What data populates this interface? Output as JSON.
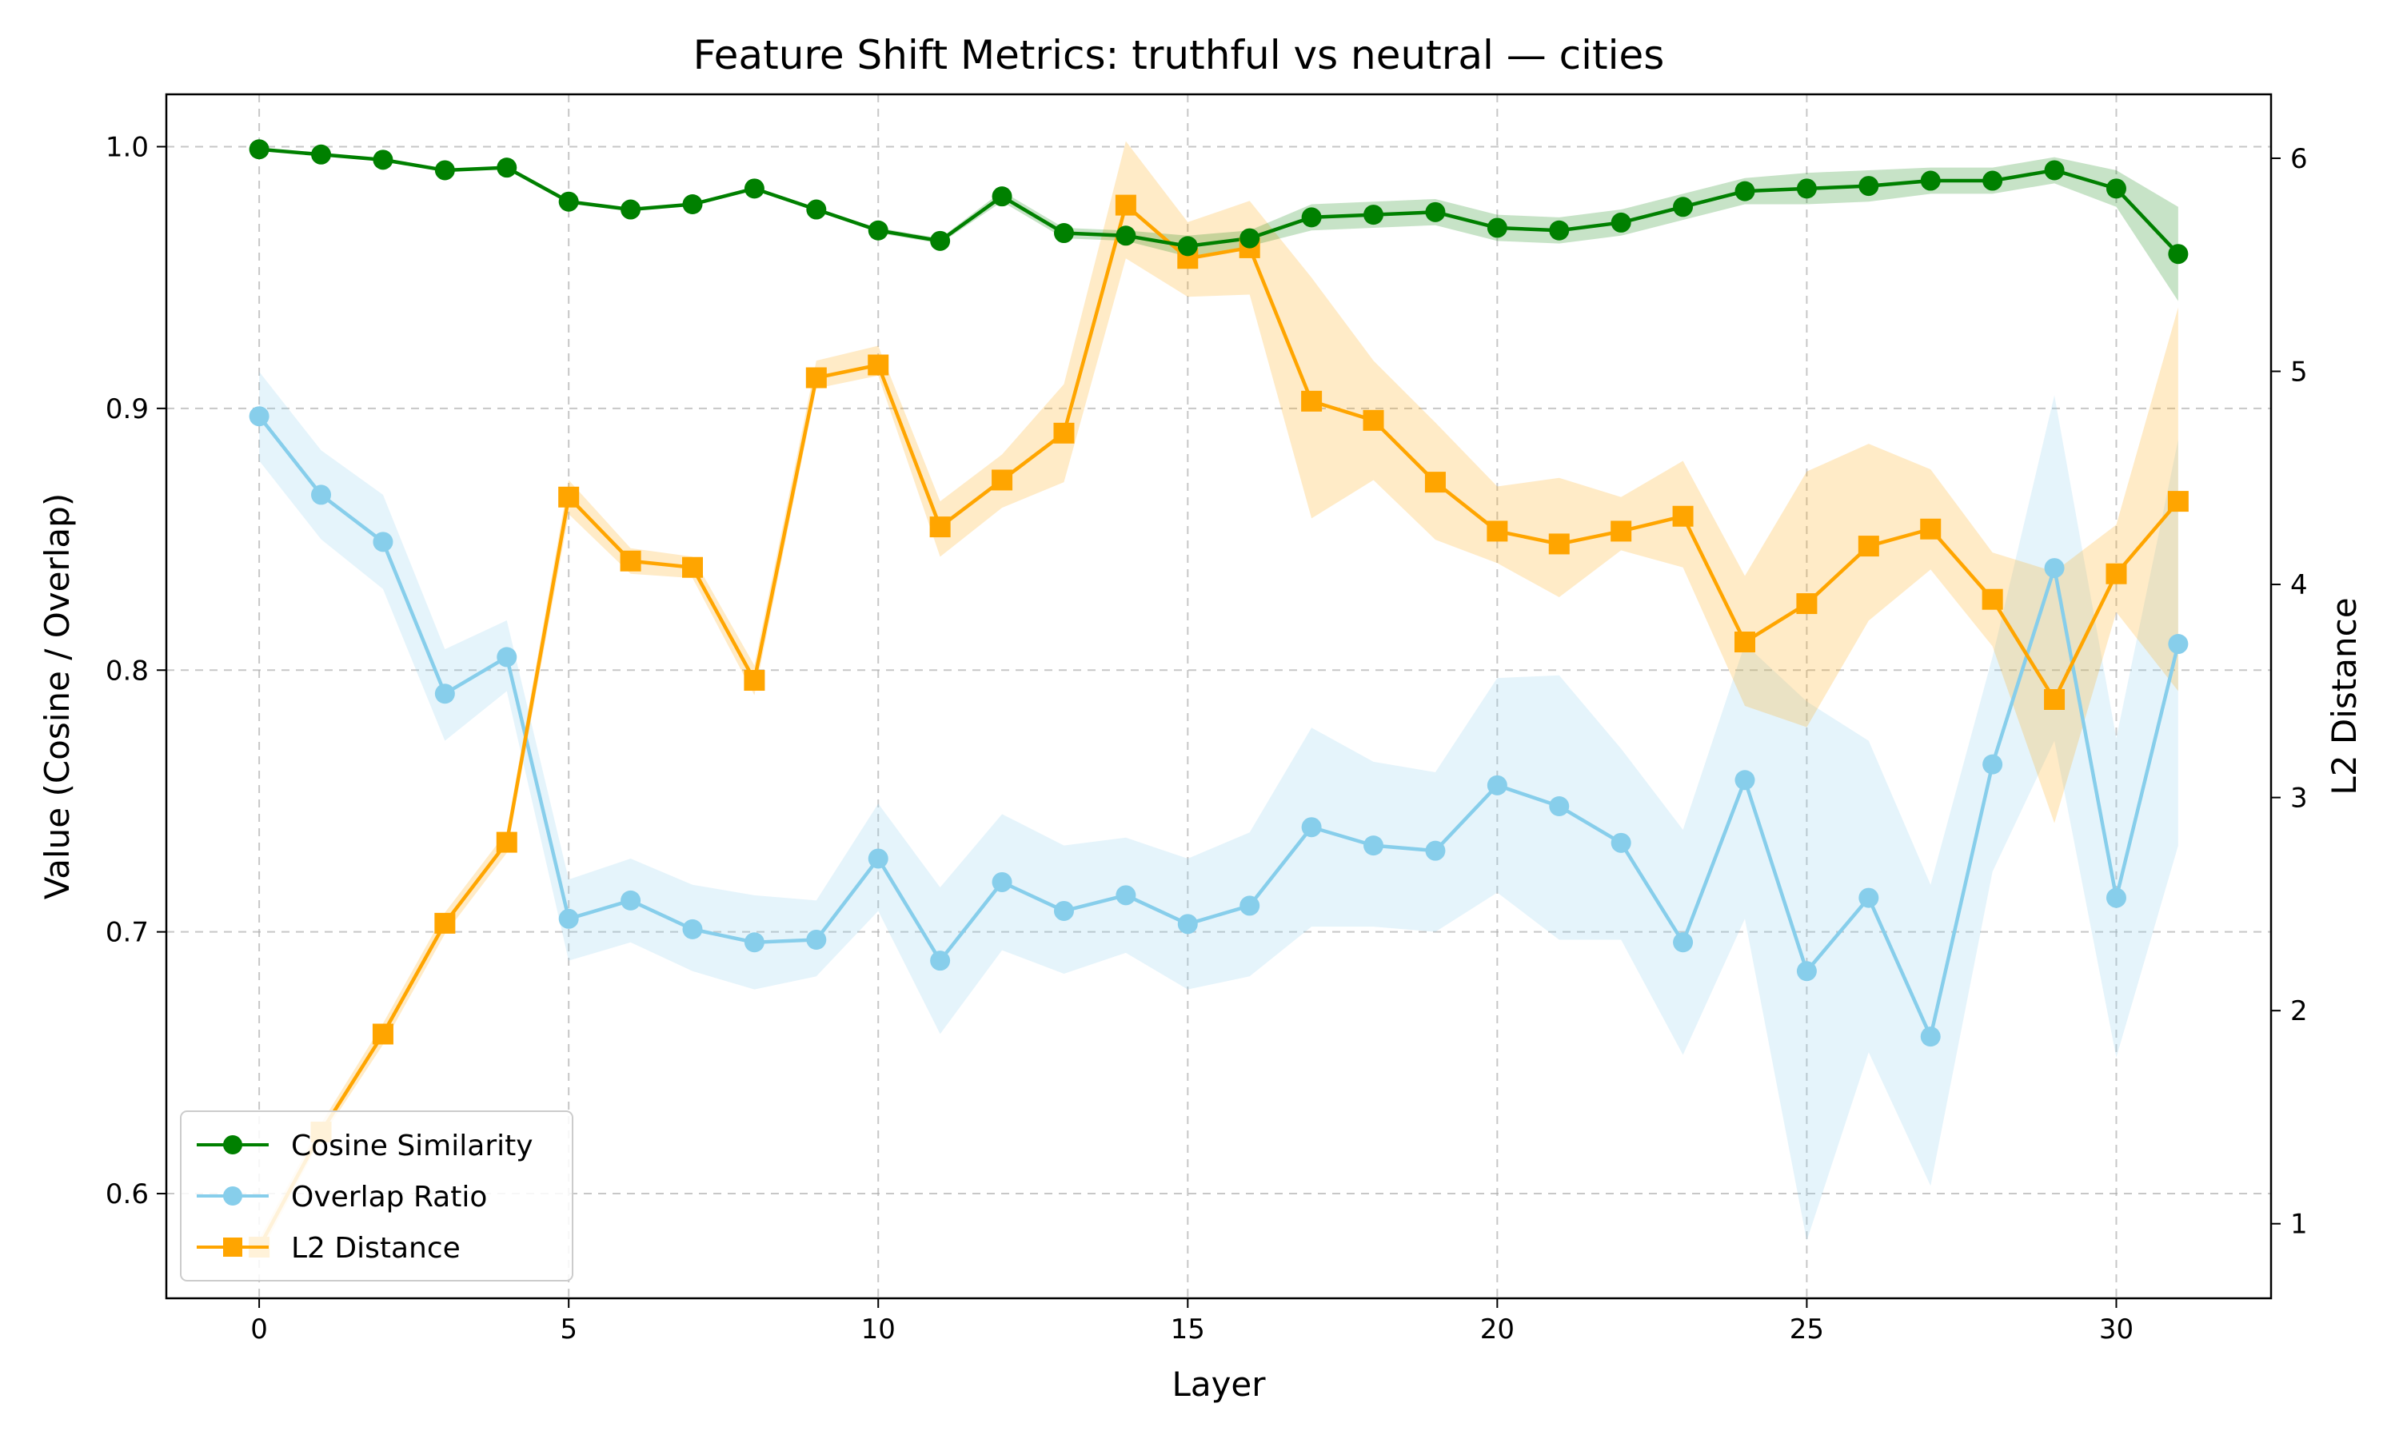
{
  "chart_data": {
    "type": "line",
    "title": "Feature Shift Metrics: truthful vs neutral — cities",
    "xlabel": "Layer",
    "ylabel_left": "Value (Cosine / Overlap)",
    "ylabel_right": "L2 Distance",
    "xlim": [
      -1.5,
      32.5
    ],
    "ylim_left": [
      0.56,
      1.02
    ],
    "ylim_right": [
      0.65,
      6.3
    ],
    "x_ticks": [
      0,
      5,
      10,
      15,
      20,
      25,
      30
    ],
    "y_ticks_left": [
      0.6,
      0.7,
      0.8,
      0.9,
      1.0
    ],
    "y_ticks_right": [
      1,
      2,
      3,
      4,
      5,
      6
    ],
    "grid": true,
    "legend_position": "lower-left",
    "x": [
      0,
      1,
      2,
      3,
      4,
      5,
      6,
      7,
      8,
      9,
      10,
      11,
      12,
      13,
      14,
      15,
      16,
      17,
      18,
      19,
      20,
      21,
      22,
      23,
      24,
      25,
      26,
      27,
      28,
      29,
      30,
      31
    ],
    "series": [
      {
        "name": "Cosine Similarity",
        "axis": "left",
        "color": "#008000",
        "marker": "circle",
        "values": [
          0.999,
          0.997,
          0.995,
          0.991,
          0.992,
          0.979,
          0.976,
          0.978,
          0.984,
          0.976,
          0.968,
          0.964,
          0.981,
          0.967,
          0.966,
          0.962,
          0.965,
          0.973,
          0.974,
          0.975,
          0.969,
          0.968,
          0.971,
          0.977,
          0.983,
          0.984,
          0.985,
          0.987,
          0.987,
          0.991,
          0.984,
          0.959
        ],
        "band_lower": [
          0.999,
          0.997,
          0.995,
          0.991,
          0.992,
          0.979,
          0.976,
          0.978,
          0.984,
          0.976,
          0.967,
          0.963,
          0.979,
          0.965,
          0.964,
          0.958,
          0.962,
          0.968,
          0.969,
          0.97,
          0.964,
          0.963,
          0.966,
          0.972,
          0.978,
          0.978,
          0.979,
          0.982,
          0.982,
          0.986,
          0.977,
          0.941
        ],
        "band_upper": [
          0.999,
          0.997,
          0.995,
          0.991,
          0.992,
          0.979,
          0.976,
          0.978,
          0.984,
          0.976,
          0.969,
          0.965,
          0.983,
          0.969,
          0.968,
          0.966,
          0.968,
          0.978,
          0.979,
          0.98,
          0.974,
          0.973,
          0.976,
          0.982,
          0.988,
          0.99,
          0.991,
          0.992,
          0.992,
          0.996,
          0.991,
          0.977
        ]
      },
      {
        "name": "Overlap Ratio",
        "axis": "left",
        "color": "#87CEEB",
        "marker": "circle",
        "values": [
          0.897,
          0.867,
          0.849,
          0.791,
          0.805,
          0.705,
          0.712,
          0.701,
          0.696,
          0.697,
          0.728,
          0.689,
          0.719,
          0.708,
          0.714,
          0.703,
          0.71,
          0.74,
          0.733,
          0.731,
          0.756,
          0.748,
          0.734,
          0.696,
          0.758,
          0.685,
          0.713,
          0.66,
          0.764,
          0.839,
          0.713,
          0.81
        ],
        "band_lower": [
          0.88,
          0.85,
          0.831,
          0.773,
          0.792,
          0.689,
          0.696,
          0.685,
          0.678,
          0.683,
          0.708,
          0.661,
          0.693,
          0.684,
          0.692,
          0.678,
          0.683,
          0.702,
          0.702,
          0.7,
          0.715,
          0.697,
          0.697,
          0.653,
          0.705,
          0.582,
          0.654,
          0.603,
          0.723,
          0.773,
          0.652,
          0.733
        ],
        "band_upper": [
          0.914,
          0.884,
          0.867,
          0.808,
          0.819,
          0.72,
          0.728,
          0.718,
          0.714,
          0.712,
          0.749,
          0.717,
          0.745,
          0.733,
          0.736,
          0.728,
          0.738,
          0.778,
          0.765,
          0.761,
          0.797,
          0.798,
          0.77,
          0.739,
          0.81,
          0.788,
          0.773,
          0.718,
          0.805,
          0.905,
          0.774,
          0.888
        ]
      },
      {
        "name": "L2 Distance",
        "axis": "right",
        "color": "#FFA500",
        "marker": "square",
        "values": [
          0.89,
          1.43,
          1.89,
          2.41,
          2.79,
          4.41,
          4.11,
          4.08,
          3.55,
          4.97,
          5.03,
          4.27,
          4.49,
          4.71,
          5.78,
          5.53,
          5.58,
          4.86,
          4.77,
          4.48,
          4.25,
          4.19,
          4.25,
          4.32,
          3.73,
          3.91,
          4.18,
          4.26,
          3.93,
          3.46,
          4.05,
          4.39
        ],
        "band_lower": [
          0.85,
          1.4,
          1.84,
          2.36,
          2.74,
          4.33,
          4.05,
          4.03,
          3.48,
          4.92,
          4.98,
          4.13,
          4.36,
          4.48,
          5.53,
          5.35,
          5.36,
          4.31,
          4.49,
          4.21,
          4.1,
          3.94,
          4.16,
          4.08,
          3.43,
          3.33,
          3.83,
          4.07,
          3.71,
          2.88,
          3.87,
          3.5
        ]
      }
    ],
    "l2_band_upper": [
      0.93,
      1.47,
      1.94,
      2.46,
      2.84,
      4.49,
      4.17,
      4.13,
      3.62,
      5.05,
      5.12,
      4.39,
      4.61,
      4.94,
      6.08,
      5.7,
      5.8,
      5.44,
      5.05,
      4.76,
      4.46,
      4.5,
      4.41,
      4.58,
      4.04,
      4.53,
      4.66,
      4.54,
      4.15,
      4.06,
      4.28,
      5.3
    ]
  }
}
